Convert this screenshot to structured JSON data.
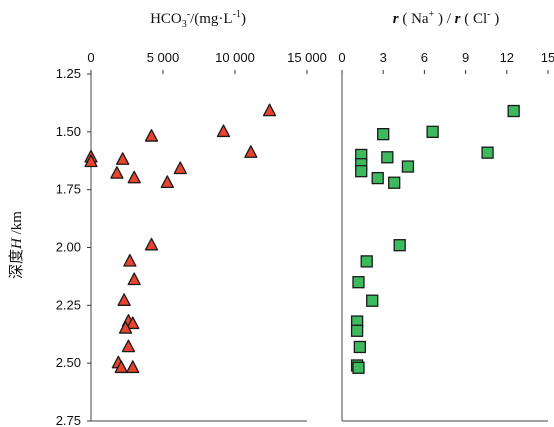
{
  "chart_data": [
    {
      "type": "scatter",
      "title_parts": {
        "hco": "HCO",
        "sub3": "3",
        "sup_minus": "-",
        "unit_open": "/(mg",
        "dot": "·",
        "unit_l": "L",
        "sup_m1": "-1",
        "unit_close": ")"
      },
      "xlim": [
        0,
        15000
      ],
      "x_ticks": [
        0,
        5000,
        10000,
        15000
      ],
      "x_tick_labels": [
        "0",
        "5 000",
        "10 000",
        "15 000"
      ],
      "marker": "triangle",
      "color": "#e8432e",
      "series": [
        {
          "points": [
            {
              "x": 0,
              "y": 1.61
            },
            {
              "x": 0,
              "y": 1.63
            },
            {
              "x": 1800,
              "y": 1.68
            },
            {
              "x": 2200,
              "y": 1.62
            },
            {
              "x": 3000,
              "y": 1.7
            },
            {
              "x": 4200,
              "y": 1.52
            },
            {
              "x": 5300,
              "y": 1.72
            },
            {
              "x": 6200,
              "y": 1.66
            },
            {
              "x": 9200,
              "y": 1.5
            },
            {
              "x": 11100,
              "y": 1.59
            },
            {
              "x": 12400,
              "y": 1.41
            },
            {
              "x": 4200,
              "y": 1.99
            },
            {
              "x": 2700,
              "y": 2.06
            },
            {
              "x": 3000,
              "y": 2.14
            },
            {
              "x": 2300,
              "y": 2.23
            },
            {
              "x": 2600,
              "y": 2.32
            },
            {
              "x": 2900,
              "y": 2.33
            },
            {
              "x": 2400,
              "y": 2.35
            },
            {
              "x": 2600,
              "y": 2.43
            },
            {
              "x": 1900,
              "y": 2.5
            },
            {
              "x": 2100,
              "y": 2.52
            },
            {
              "x": 2900,
              "y": 2.52
            }
          ]
        }
      ]
    },
    {
      "type": "scatter",
      "title_parts": {
        "r1": "r",
        "na": "Na",
        "sup_plus": "+",
        "slash": "/",
        "r2": "r",
        "cl": "Cl",
        "sup_minus": "-"
      },
      "xlim": [
        0,
        15
      ],
      "x_ticks": [
        0,
        3,
        6,
        9,
        12,
        15
      ],
      "x_tick_labels": [
        "0",
        "3",
        "6",
        "9",
        "12",
        "15"
      ],
      "marker": "square",
      "color": "#3dba5e",
      "series": [
        {
          "points": [
            {
              "x": 12.5,
              "y": 1.41
            },
            {
              "x": 6.6,
              "y": 1.5
            },
            {
              "x": 3.0,
              "y": 1.51
            },
            {
              "x": 10.6,
              "y": 1.59
            },
            {
              "x": 1.4,
              "y": 1.6
            },
            {
              "x": 3.3,
              "y": 1.61
            },
            {
              "x": 1.4,
              "y": 1.64
            },
            {
              "x": 4.8,
              "y": 1.65
            },
            {
              "x": 1.4,
              "y": 1.67
            },
            {
              "x": 2.6,
              "y": 1.7
            },
            {
              "x": 3.8,
              "y": 1.72
            },
            {
              "x": 4.2,
              "y": 1.99
            },
            {
              "x": 1.8,
              "y": 2.06
            },
            {
              "x": 1.2,
              "y": 2.15
            },
            {
              "x": 2.2,
              "y": 2.23
            },
            {
              "x": 1.1,
              "y": 2.32
            },
            {
              "x": 1.1,
              "y": 2.36
            },
            {
              "x": 1.3,
              "y": 2.43
            },
            {
              "x": 1.1,
              "y": 2.51
            },
            {
              "x": 1.2,
              "y": 2.52
            }
          ]
        }
      ]
    }
  ],
  "shared_y": {
    "label_cn": "深度",
    "label_var": "H",
    "label_unit": " /km",
    "ylim": [
      1.25,
      2.75
    ],
    "inverted": true,
    "y_ticks": [
      1.25,
      1.5,
      1.75,
      2.0,
      2.25,
      2.5,
      2.75
    ],
    "y_tick_labels": [
      "1.25",
      "1.50",
      "1.75",
      "2.00",
      "2.25",
      "2.50",
      "2.75"
    ]
  }
}
